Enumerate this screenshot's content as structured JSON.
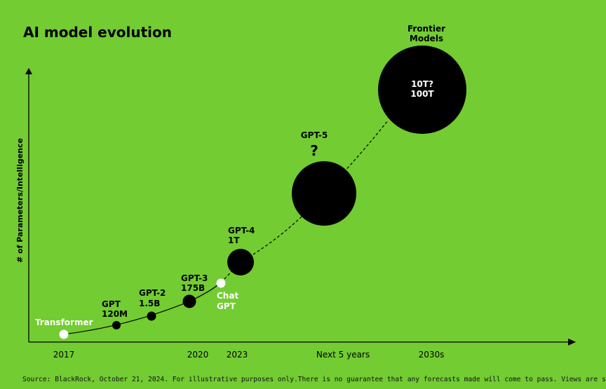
{
  "chart_data": {
    "type": "scatter",
    "title": "AI model evolution",
    "ylabel": "# of Parameters/Intelligence",
    "xlabel": "",
    "x_ticks": [
      "2017",
      "2020",
      "2023",
      "Next 5 years",
      "2030s"
    ],
    "points": [
      {
        "label": [
          "Transformer"
        ],
        "x": "2017",
        "kind": "hollow",
        "color": "#ffffff"
      },
      {
        "label": [
          "GPT",
          "120M"
        ],
        "x": "2018",
        "kind": "filled",
        "color": "#000000"
      },
      {
        "label": [
          "GPT-2",
          "1.5B"
        ],
        "x": "2019",
        "kind": "filled",
        "color": "#000000"
      },
      {
        "label": [
          "GPT-3",
          "175B"
        ],
        "x": "2020",
        "kind": "filled",
        "color": "#000000"
      },
      {
        "label": [
          "Chat",
          "GPT"
        ],
        "x": "2022",
        "kind": "hollow",
        "color": "#ffffff"
      },
      {
        "label": [
          "GPT-4",
          "1T"
        ],
        "x": "2023",
        "kind": "filled",
        "color": "#000000"
      },
      {
        "label": [
          "GPT-5",
          "?"
        ],
        "x": "Next 5 years",
        "kind": "filled",
        "color": "#000000"
      },
      {
        "label": [
          "Frontier",
          "Models"
        ],
        "inner_label": [
          "10T?",
          "100T"
        ],
        "x": "2030s",
        "kind": "filled",
        "color": "#000000"
      }
    ],
    "colors": {
      "background": "#72cc32",
      "marker": "#000000",
      "hollow_marker": "#ffffff"
    },
    "grid": false,
    "legend": "none"
  },
  "footer": {
    "source": "Source: BlackRock, October 21, 2024. For illustrative purposes only.There is no guarantee that any forecasts made will come to pass. Views are subject to change."
  }
}
